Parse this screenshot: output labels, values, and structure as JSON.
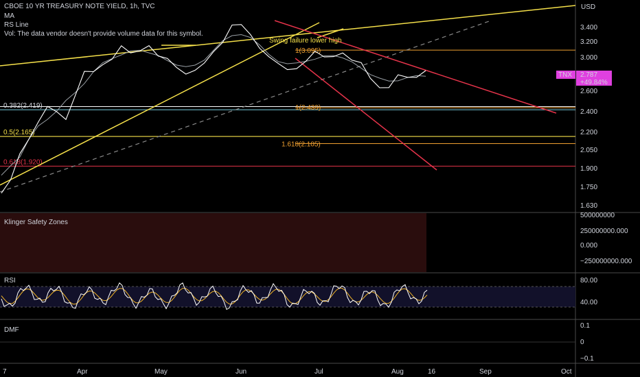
{
  "header": {
    "title": "CBOE 10 YR TREASURY NOTE YIELD, 1h, TVC",
    "indicators": [
      "MA",
      "RS Line",
      "Vol: The data vendor doesn't provide volume data for this symbol."
    ]
  },
  "currency": "USD",
  "colors": {
    "background": "#000000",
    "price": "#ffffff",
    "ma": "#d1d4dc",
    "yellow": "#f5e04a",
    "orange": "#f0a030",
    "red": "#e5334a",
    "cyan": "#7ad0e0",
    "dash": "#8a8a8a",
    "badge": "#e040e0",
    "rsi_ma": "#f0b429",
    "klinger_bg": "#2a0d0d"
  },
  "chart_data": {
    "type": "line",
    "x_ticks": [
      "7",
      "Apr",
      "May",
      "Jun",
      "Jul",
      "Aug",
      "16",
      "Sep",
      "Oct"
    ],
    "y_ticks": [
      "3.400",
      "3.200",
      "3.000",
      "2.800",
      "2.600",
      "2.400",
      "2.200",
      "2.050",
      "1.900",
      "1.750",
      "1.630"
    ],
    "y_values": [
      3.4,
      3.2,
      3.0,
      2.8,
      2.6,
      2.4,
      2.2,
      2.05,
      1.9,
      1.75,
      1.63
    ],
    "symbol": "TNX",
    "last_price": "2.787",
    "change_pct": "+49.84%",
    "price_series": [
      1.72,
      1.82,
      2.0,
      2.15,
      2.28,
      2.48,
      2.4,
      2.32,
      2.55,
      2.8,
      2.86,
      2.9,
      3.0,
      3.12,
      3.05,
      3.1,
      3.15,
      3.05,
      2.95,
      2.88,
      2.78,
      2.86,
      2.95,
      3.05,
      3.2,
      3.4,
      3.48,
      3.3,
      3.12,
      3.0,
      2.9,
      2.88,
      2.85,
      2.98,
      3.05,
      3.0,
      3.02,
      3.06,
      3.0,
      2.9,
      2.75,
      2.62,
      2.66,
      2.8,
      2.74,
      2.76,
      2.8
    ],
    "fib_levels": [
      {
        "label": "0.382(2.419)",
        "value": 2.419
      },
      {
        "label": "0.5(2.165)",
        "value": 2.165
      },
      {
        "label": "0.618(1.920)",
        "value": 1.92
      }
    ],
    "ext_levels": [
      {
        "label": "1(3.095)",
        "value": 3.095
      },
      {
        "label": "1(2.439)",
        "value": 2.439
      },
      {
        "label": "1.618(2.105)",
        "value": 2.105
      }
    ],
    "annotation": "Swing failure lower high",
    "panes": [
      {
        "name": "Klinger Safety Zones",
        "ticks": [
          "500000000",
          "250000000.000",
          "0.000",
          "−250000000.000"
        ]
      },
      {
        "name": "RSI",
        "ticks": [
          "80.00",
          "40.00"
        ]
      },
      {
        "name": "DMF",
        "ticks": [
          "0.1",
          "0",
          "−0.1"
        ]
      }
    ]
  }
}
